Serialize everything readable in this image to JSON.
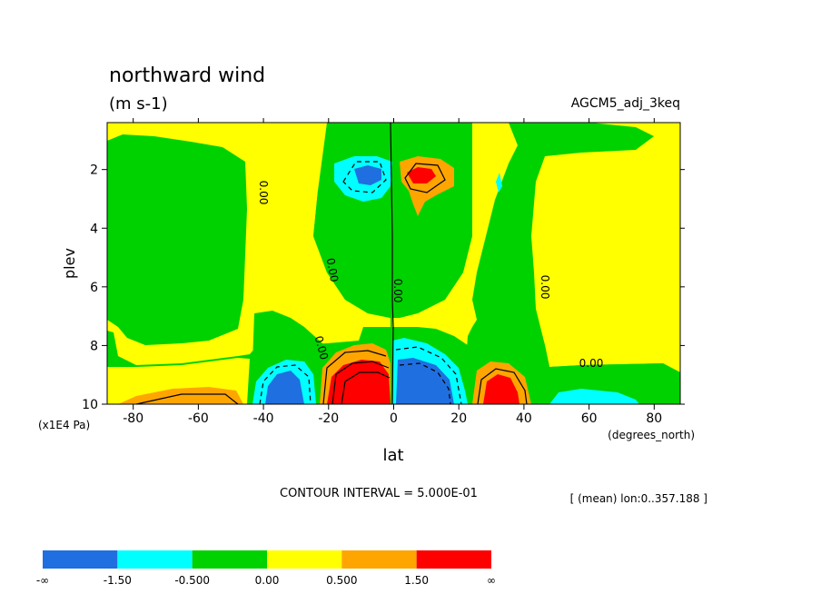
{
  "chart_data": {
    "type": "contour",
    "title": "northward wind",
    "units": "(m s-1)",
    "dataset": "AGCM5_adj_3keq",
    "xlabel": "lat",
    "x_units": "(degrees_north)",
    "ylabel": "plev",
    "y_units": "(x1E4 Pa)",
    "xlim": [
      -88,
      88
    ],
    "ylim": [
      10,
      0.4
    ],
    "x_ticks": [
      "-80",
      "-60",
      "-40",
      "-20",
      "0",
      "20",
      "40",
      "60",
      "80"
    ],
    "y_ticks": [
      "2",
      "4",
      "6",
      "8",
      "10"
    ],
    "contour_interval_text": "CONTOUR INTERVAL = 5.000E-01",
    "mean_text": "[ (mean) lon:0..357.188 ]",
    "zero_labels": [
      "0.00",
      "0.00",
      "0.00",
      "0.00",
      "0.00",
      "0.00"
    ],
    "legend": {
      "labels": [
        "-∞",
        "-1.50",
        "-0.500",
        "0.00",
        "0.500",
        "1.50",
        "∞"
      ],
      "colors": [
        "#1f6fe0",
        "#00ffff",
        "#00d200",
        "#ffff00",
        "#ffa500",
        "#ff0000"
      ]
    },
    "features": [
      {
        "name": "upper southern minimum",
        "lat": -7,
        "plev": 2.0,
        "value": -1.5
      },
      {
        "name": "upper northern maximum",
        "lat": 8,
        "plev": 2.0,
        "value": 1.5
      },
      {
        "name": "lower southern maximum",
        "lat": -8,
        "plev": 9.5,
        "value": 2.5
      },
      {
        "name": "lower northern minimum",
        "lat": 10,
        "plev": 9.4,
        "value": -2.5
      },
      {
        "name": "lower minimum near -35",
        "lat": -35,
        "plev": 9.6,
        "value": -1.5
      },
      {
        "name": "lower maximum near 33",
        "lat": 33,
        "plev": 9.6,
        "value": 1.5
      },
      {
        "name": "lower maximum near -60",
        "lat": -60,
        "plev": 9.9,
        "value": 0.8
      },
      {
        "name": "lower minimum near 65",
        "lat": 65,
        "plev": 9.9,
        "value": -0.8
      }
    ]
  }
}
